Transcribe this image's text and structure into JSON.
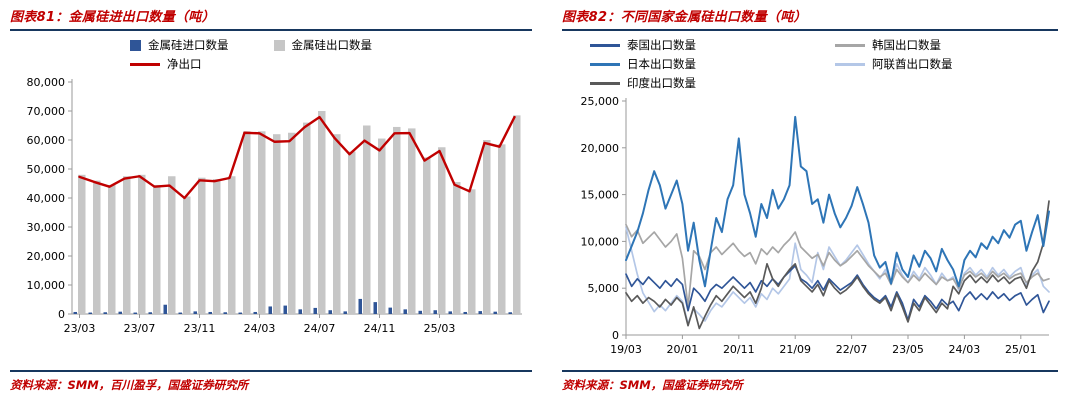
{
  "left_panel": {
    "title": "图表81：金属硅进出口数量（吨）",
    "source": "资料来源：SMM，百川盈孚，国盛证券研究所",
    "legend": [
      {
        "label": "金属硅进口数量",
        "marker": "square",
        "color": "#2F5597"
      },
      {
        "label": "金属硅出口数量",
        "marker": "square",
        "color": "#C6C6C6"
      },
      {
        "label": "净出口",
        "marker": "line",
        "color": "#C00000"
      }
    ]
  },
  "right_panel": {
    "title": "图表82：不同国家金属硅出口数量（吨）",
    "source": "资料来源：SMM，国盛证券研究所",
    "legend": [
      {
        "label": "泰国出口数量",
        "marker": "line",
        "color": "#2F5597"
      },
      {
        "label": "韩国出口数量",
        "marker": "line",
        "color": "#A6A6A6"
      },
      {
        "label": "日本出口数量",
        "marker": "line",
        "color": "#2E75B6"
      },
      {
        "label": "阿联酋出口数量",
        "marker": "line",
        "color": "#B4C7E7"
      },
      {
        "label": "印度出口数量",
        "marker": "line",
        "color": "#595959"
      }
    ]
  },
  "colors": {
    "rule_navy": "#17375E",
    "title_red": "#C00000",
    "axis_gray": "#9A9A9A"
  },
  "chart_data": [
    {
      "type": "bar",
      "title": "金属硅进出口数量（吨）",
      "n_points": 30,
      "x": [
        "23/03",
        "23/04",
        "23/05",
        "23/06",
        "23/07",
        "23/08",
        "23/09",
        "23/10",
        "23/11",
        "23/12",
        "24/01",
        "24/02",
        "24/03",
        "24/04",
        "24/05",
        "24/06",
        "24/07",
        "24/08",
        "24/09",
        "24/10",
        "24/11",
        "24/12",
        "25/01",
        "25/02",
        "25/03",
        "25/04",
        "25/05",
        "25/06",
        "25/07",
        "25/08"
      ],
      "x_tick_labels": [
        "23/03",
        "23/07",
        "23/11",
        "24/03",
        "24/07",
        "24/11",
        "25/03"
      ],
      "x_tick_indices": [
        0,
        4,
        8,
        12,
        16,
        20,
        24
      ],
      "ylim": [
        0,
        80000
      ],
      "y_step": 10000,
      "grid": false,
      "legend_position": "top",
      "series": [
        {
          "name": "金属硅进口数量",
          "kind": "bar",
          "color": "#2F5597",
          "values": [
            700,
            500,
            600,
            800,
            500,
            600,
            3200,
            500,
            900,
            700,
            600,
            500,
            700,
            2600,
            2900,
            1600,
            2100,
            1300,
            900,
            5200,
            4100,
            2200,
            1600,
            1100,
            1300,
            900,
            700,
            1000,
            800,
            600
          ]
        },
        {
          "name": "金属硅出口数量",
          "kind": "bar",
          "color": "#C6C6C6",
          "values": [
            48000,
            46000,
            44500,
            47500,
            48000,
            44500,
            47500,
            40500,
            47000,
            46500,
            47500,
            63000,
            63000,
            62000,
            62500,
            66000,
            70000,
            62000,
            56000,
            65000,
            60500,
            64500,
            64000,
            54000,
            57500,
            45500,
            43000,
            60000,
            58500,
            68500
          ]
        },
        {
          "name": "净出口",
          "kind": "line",
          "color": "#C00000",
          "values": [
            47300,
            45500,
            43900,
            46700,
            47500,
            43900,
            44300,
            40000,
            46100,
            45800,
            46900,
            62500,
            62300,
            59400,
            59600,
            64400,
            67900,
            60700,
            55100,
            59800,
            56400,
            62300,
            62400,
            52900,
            56200,
            44600,
            42300,
            59000,
            57700,
            67900
          ]
        }
      ]
    },
    {
      "type": "line",
      "title": "不同国家金属硅出口数量（吨）",
      "n_points": 76,
      "x_start": "19/03",
      "x_tick_labels": [
        "19/03",
        "20/01",
        "20/11",
        "21/09",
        "22/07",
        "23/05",
        "24/03",
        "25/01"
      ],
      "x_tick_indices": [
        0,
        10,
        20,
        30,
        40,
        50,
        60,
        70
      ],
      "ylim": [
        0,
        25000
      ],
      "y_step": 5000,
      "grid": false,
      "legend_position": "top",
      "draw_order": [
        3,
        1,
        0,
        4,
        2
      ],
      "series": [
        {
          "name": "泰国出口数量",
          "kind": "line",
          "color": "#2F5597",
          "values": [
            6500,
            5200,
            6000,
            5400,
            6200,
            5600,
            5000,
            5800,
            5200,
            6000,
            5400,
            2600,
            5000,
            4400,
            3600,
            4800,
            5400,
            5000,
            5600,
            6200,
            5600,
            5000,
            5600,
            4600,
            5800,
            5200,
            6000,
            5400,
            6200,
            6800,
            7400,
            6000,
            5600,
            5000,
            5800,
            4800,
            6000,
            5400,
            4800,
            5200,
            5600,
            6400,
            5400,
            4600,
            4000,
            3600,
            4200,
            3000,
            4600,
            3400,
            1600,
            3800,
            3000,
            4200,
            3600,
            2800,
            3800,
            3200,
            3600,
            2600,
            4000,
            4600,
            3800,
            4400,
            3800,
            4600,
            3900,
            4400,
            3700,
            4200,
            4500,
            3200,
            3800,
            4300,
            2400,
            3600
          ]
        },
        {
          "name": "韩国出口数量",
          "kind": "line",
          "color": "#A6A6A6",
          "values": [
            11800,
            10500,
            11200,
            9800,
            10400,
            11000,
            10200,
            9400,
            10000,
            10800,
            8200,
            3000,
            9000,
            8400,
            7000,
            8800,
            9400,
            8600,
            9200,
            9800,
            9000,
            8400,
            8800,
            7600,
            9200,
            8600,
            9400,
            8800,
            9600,
            10200,
            11000,
            9400,
            8800,
            8200,
            8600,
            7400,
            8800,
            8000,
            7400,
            7800,
            8400,
            9000,
            8200,
            7400,
            6800,
            6200,
            6600,
            5400,
            7000,
            6200,
            5600,
            6400,
            5800,
            6600,
            6000,
            5400,
            6200,
            5800,
            6000,
            5000,
            6400,
            6800,
            6200,
            6600,
            6000,
            6800,
            6200,
            6600,
            6000,
            6400,
            6600,
            5600,
            6200,
            6600,
            5800,
            6000
          ]
        },
        {
          "name": "日本出口数量",
          "kind": "line",
          "color": "#2E75B6",
          "values": [
            8000,
            9500,
            11000,
            13000,
            15500,
            17500,
            16000,
            13500,
            15000,
            16500,
            14000,
            9000,
            12000,
            8000,
            5200,
            9000,
            12500,
            11000,
            14500,
            16000,
            21000,
            15000,
            13000,
            10500,
            14000,
            12500,
            15500,
            13500,
            14500,
            16000,
            23300,
            18000,
            17500,
            14000,
            14500,
            12000,
            15000,
            13000,
            11500,
            12500,
            13800,
            15800,
            14000,
            12000,
            8500,
            7200,
            7800,
            5500,
            8800,
            7000,
            6200,
            8500,
            7300,
            9000,
            8200,
            6800,
            9200,
            8000,
            7000,
            5200,
            8000,
            9000,
            8300,
            9800,
            9200,
            10500,
            9800,
            11200,
            10400,
            11800,
            12200,
            9000,
            11000,
            12800,
            9500,
            13200
          ]
        },
        {
          "name": "阿联酋出口数量",
          "kind": "line",
          "color": "#B4C7E7",
          "values": [
            11500,
            9000,
            6500,
            4500,
            3500,
            2500,
            3200,
            2600,
            3400,
            4200,
            3600,
            1200,
            2800,
            2200,
            1500,
            2600,
            3400,
            3000,
            3800,
            4600,
            4000,
            3400,
            4000,
            3000,
            4400,
            3800,
            5000,
            4400,
            5200,
            6000,
            9800,
            7000,
            6400,
            5600,
            8800,
            7000,
            9400,
            8400,
            7400,
            8000,
            8800,
            9600,
            8600,
            7600,
            6800,
            6000,
            7000,
            5400,
            7600,
            6400,
            5600,
            6800,
            6000,
            7200,
            6400,
            5400,
            6600,
            5800,
            6200,
            4800,
            6600,
            7200,
            6400,
            7000,
            6200,
            7200,
            6400,
            7000,
            6200,
            6800,
            7200,
            5400,
            6400,
            7000,
            5200,
            4600
          ]
        },
        {
          "name": "印度出口数量",
          "kind": "line",
          "color": "#595959",
          "values": [
            4500,
            3600,
            4200,
            3400,
            4000,
            3600,
            3000,
            3800,
            3200,
            4000,
            3400,
            1000,
            3000,
            700,
            2000,
            3200,
            4200,
            3600,
            4400,
            5200,
            4600,
            4000,
            4600,
            3400,
            5000,
            7600,
            6000,
            5200,
            6200,
            7000,
            7600,
            5800,
            5200,
            4600,
            5400,
            4200,
            5800,
            5000,
            4400,
            4800,
            5400,
            6200,
            5200,
            4400,
            3800,
            3400,
            4000,
            2600,
            4400,
            3000,
            1400,
            3400,
            2600,
            4000,
            3200,
            2400,
            3400,
            2800,
            5200,
            4400,
            5800,
            6400,
            5600,
            6200,
            5600,
            6400,
            5700,
            6200,
            5500,
            6000,
            6200,
            5000,
            6800,
            7800,
            9800,
            14300
          ]
        }
      ]
    }
  ]
}
